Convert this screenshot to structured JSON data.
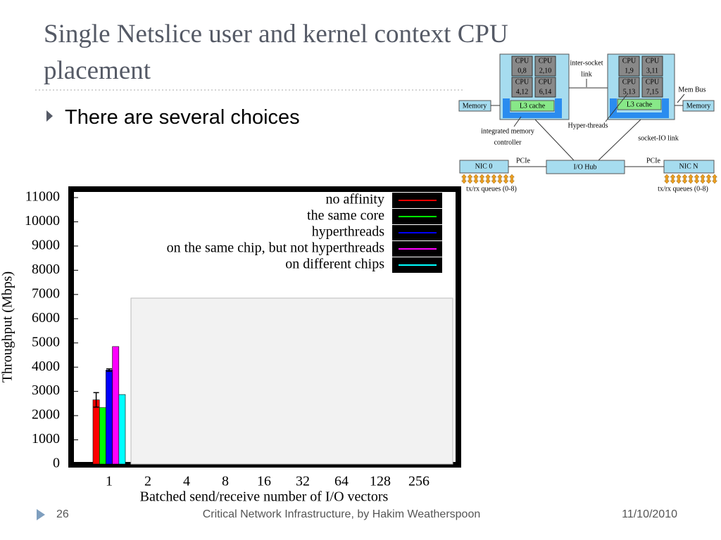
{
  "slide": {
    "title_lines": [
      "Single Netslice user and kernel context CPU",
      "placement"
    ],
    "bullet": "There are several choices",
    "page": "26",
    "footer": "Critical Network Infrastructure, by Hakim Weatherspoon",
    "date": "11/10/2010"
  },
  "diagram": {
    "cpu_label": "CPU",
    "cpus": [
      "0,8",
      "2,10",
      "4,12",
      "6,14",
      "1,9",
      "3,11",
      "5,13",
      "7,15"
    ],
    "cache": "L3 cache",
    "memory": "Memory",
    "inter_socket": [
      "inter-socket",
      "link"
    ],
    "mem_bus": "Mem Bus",
    "hyper_threads": "Hyper-threads",
    "imc": [
      "integrated memory",
      "controller"
    ],
    "socket_io": "socket-IO link",
    "pcie": "PCIe",
    "io_hub": "I/O Hub",
    "nic0": "NIC 0",
    "nicn": "NIC N",
    "queues": "tx/rx queues (0-8)"
  },
  "chart_data": {
    "type": "bar",
    "categories": [
      "1",
      "2",
      "4",
      "8",
      "16",
      "32",
      "64",
      "128",
      "256"
    ],
    "series": [
      {
        "name": "no affinity",
        "color": "#ff0000",
        "values": [
          2650,
          null,
          null,
          null,
          null,
          null,
          null,
          null,
          null
        ],
        "errors": [
          300,
          null,
          null,
          null,
          null,
          null,
          null,
          null,
          null
        ]
      },
      {
        "name": "the same core",
        "color": "#00ff00",
        "values": [
          2330,
          null,
          null,
          null,
          null,
          null,
          null,
          null,
          null
        ]
      },
      {
        "name": "hyperthreads",
        "color": "#0000ff",
        "values": [
          3880,
          null,
          null,
          null,
          null,
          null,
          null,
          null,
          null
        ],
        "errors": [
          50,
          null,
          null,
          null,
          null,
          null,
          null,
          null,
          null
        ]
      },
      {
        "name": "on the same chip, but not hyperthreads",
        "color": "#ff00ff",
        "values": [
          4850,
          null,
          null,
          null,
          null,
          null,
          null,
          null,
          null
        ]
      },
      {
        "name": "on different chips",
        "color": "#00ffff",
        "values": [
          2870,
          null,
          null,
          null,
          null,
          null,
          null,
          null,
          null
        ]
      }
    ],
    "ylim": [
      0,
      11000
    ],
    "yticks": [
      0,
      1000,
      2000,
      3000,
      4000,
      5000,
      6000,
      7000,
      8000,
      9000,
      10000,
      11000
    ],
    "xlabel": "Batched send/receive number of I/O vectors",
    "ylabel": "Throughput (Mbps)",
    "legend": "top-right"
  }
}
